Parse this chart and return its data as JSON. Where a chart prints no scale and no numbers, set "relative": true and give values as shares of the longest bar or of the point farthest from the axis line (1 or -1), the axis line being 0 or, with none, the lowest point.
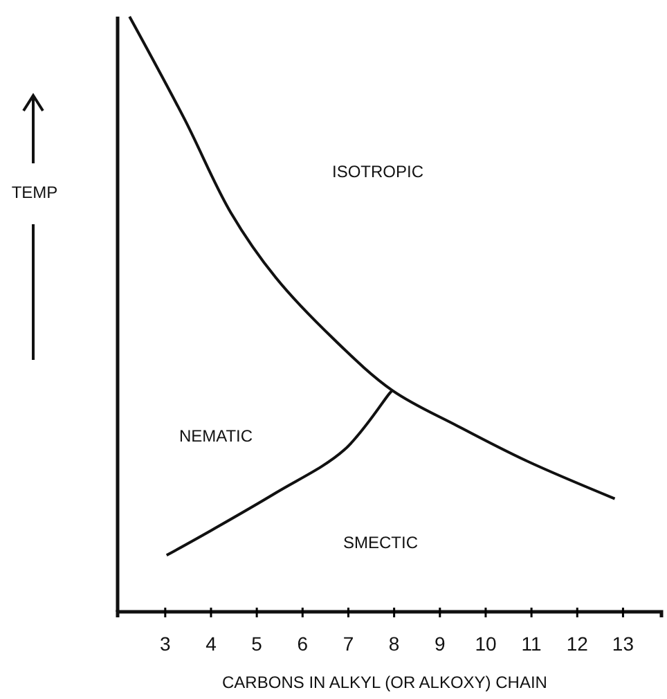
{
  "chart_data": {
    "type": "line",
    "relative": true,
    "xlabel": "CARBONS IN ALKYL (OR ALKOXY) CHAIN",
    "ylabel": "TEMP",
    "xlim": [
      1.96,
      13.84
    ],
    "xticks": [
      3,
      4,
      5,
      6,
      7,
      8,
      9,
      10,
      11,
      12,
      13
    ],
    "series": [
      {
        "color": "#111111",
        "x": [
          2.22,
          3.42,
          4.43,
          5.42,
          6.67,
          7.96,
          9.39,
          10.88,
          12.82
        ],
        "values": [
          1.0,
          0.828,
          0.671,
          0.561,
          0.459,
          0.372,
          0.312,
          0.254,
          0.19
        ]
      },
      {
        "color": "#111111",
        "x": [
          3.03,
          4.01,
          5.42,
          6.91,
          7.9,
          7.96
        ],
        "values": [
          0.095,
          0.137,
          0.2,
          0.272,
          0.367,
          0.372
        ]
      }
    ],
    "annotations": [
      "ISOTROPIC",
      "NEMATIC",
      "SMECTIC"
    ],
    "marker": "none",
    "line_style": "solid",
    "grid": false
  }
}
